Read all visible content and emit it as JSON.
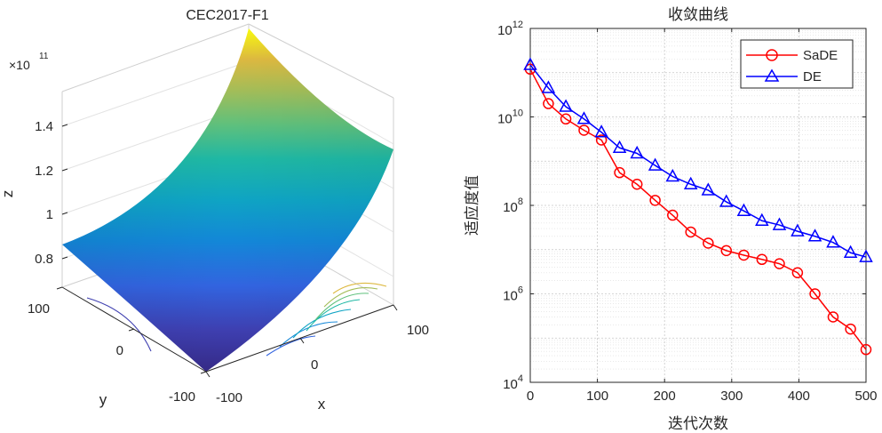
{
  "chart_data": [
    {
      "type": "surface",
      "title": "CEC2017-F1",
      "xlabel": "x",
      "ylabel": "y",
      "zlabel": "z",
      "z_exponent_label": "×10",
      "z_exponent": "11",
      "x_ticks": [
        "-100",
        "0",
        "100"
      ],
      "y_ticks": [
        "-100",
        "0",
        "100"
      ],
      "z_ticks": [
        "0.8",
        "1",
        "1.2",
        "1.4"
      ],
      "xlim": [
        -100,
        100
      ],
      "ylim": [
        -100,
        100
      ],
      "colormap": "parula",
      "contour_projection": true
    },
    {
      "type": "line",
      "title": "收敛曲线",
      "xlabel": "迭代次数",
      "ylabel": "适应度值",
      "yscale": "log",
      "xlim": [
        0,
        500
      ],
      "ylim": [
        10000,
        1000000000000
      ],
      "x_ticks": [
        "0",
        "100",
        "200",
        "300",
        "400",
        "500"
      ],
      "y_tick_base": "10",
      "y_tick_exponents": [
        "4",
        "6",
        "8",
        "10",
        "12"
      ],
      "grid": true,
      "legend_position": "top-right",
      "x": [
        0,
        27,
        53,
        80,
        106,
        133,
        159,
        186,
        212,
        239,
        265,
        292,
        318,
        345,
        371,
        398,
        424,
        451,
        477,
        500
      ],
      "series": [
        {
          "name": "SaDE",
          "color": "#ff0000",
          "marker": "circle",
          "values": [
            120000000000,
            20000000000,
            9000000000,
            5000000000,
            3000000000,
            550000000,
            300000000,
            130000000,
            60000000,
            25000000,
            14000000,
            9500000,
            7500000,
            6000000,
            4800000,
            3000000,
            1000000,
            300000,
            160000,
            55000
          ]
        },
        {
          "name": "DE",
          "color": "#0000ff",
          "marker": "triangle",
          "values": [
            150000000000,
            45000000000,
            17000000000,
            9000000000,
            4500000000,
            2000000000,
            1500000000,
            800000000,
            450000000,
            300000000,
            220000000,
            120000000,
            75000000,
            45000000,
            36000000,
            26000000,
            20000000,
            14500000,
            8500000,
            6800000
          ]
        }
      ]
    }
  ]
}
